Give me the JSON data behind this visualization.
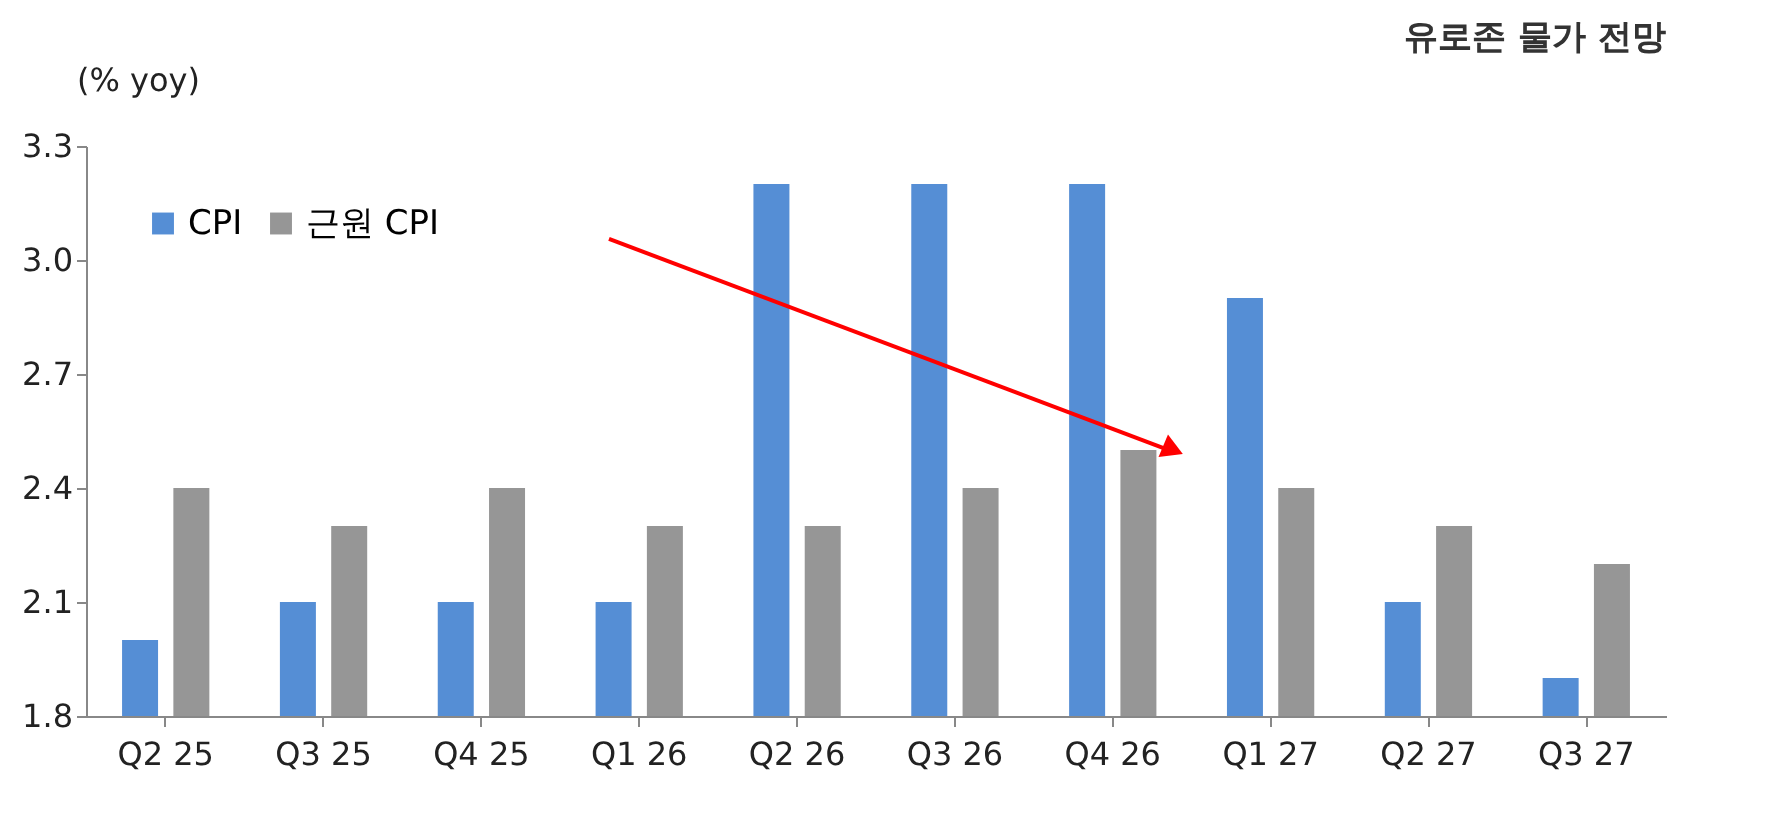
{
  "chart_data": {
    "type": "bar",
    "title": "유로존 물가 전망",
    "ylabel": "(% yoy)",
    "categories": [
      "Q2 25",
      "Q3 25",
      "Q4 25",
      "Q1 26",
      "Q2 26",
      "Q3 26",
      "Q4 26",
      "Q1 27",
      "Q2 27",
      "Q3 27"
    ],
    "series": [
      {
        "name": "CPI",
        "color": "#558ed5",
        "values": [
          2.0,
          2.1,
          2.1,
          2.1,
          3.2,
          3.2,
          3.2,
          2.9,
          2.1,
          1.9
        ]
      },
      {
        "name": "근원 CPI",
        "color": "#969696",
        "values": [
          2.4,
          2.3,
          2.4,
          2.3,
          2.3,
          2.4,
          2.5,
          2.4,
          2.3,
          2.2
        ]
      }
    ],
    "ylim": [
      1.8,
      3.3
    ],
    "yticks": [
      1.8,
      2.1,
      2.4,
      2.7,
      {
        "value": 3.0,
        "label": "3.0"
      },
      3.3
    ],
    "grid": false,
    "legend": "top left"
  }
}
